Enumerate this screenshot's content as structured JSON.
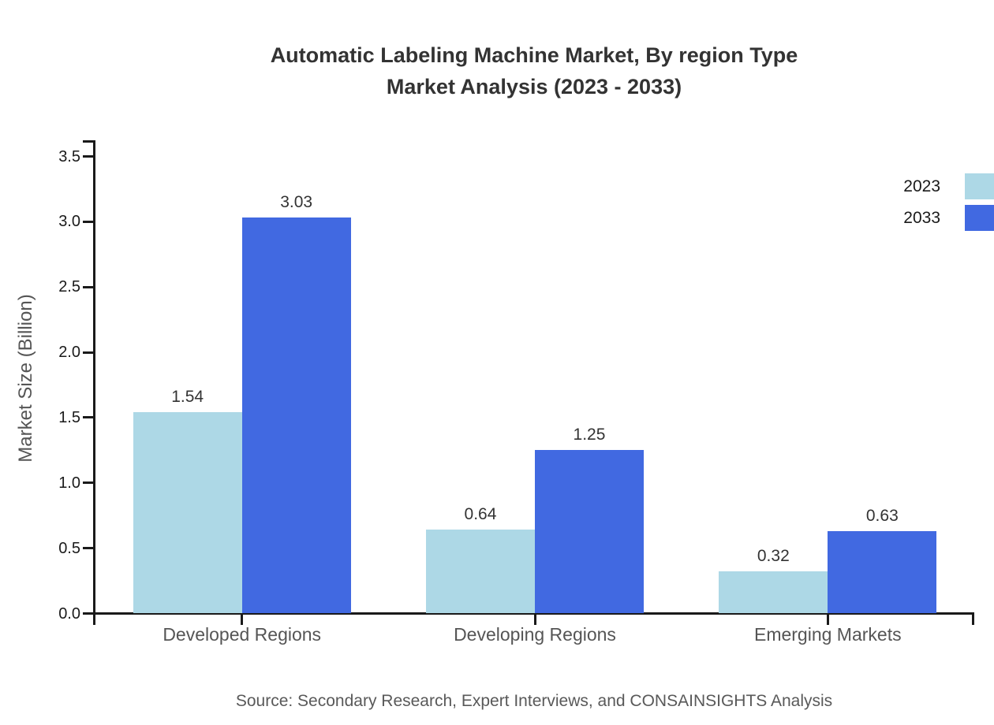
{
  "title": {
    "line1": "Automatic Labeling Machine Market, By region Type",
    "line2": "Market Analysis (2023 - 2033)"
  },
  "source": "Source: Secondary Research, Expert Interviews, and CONSAINSIGHTS Analysis",
  "legend": [
    {
      "label": "2023",
      "color": "#add8e6"
    },
    {
      "label": "2033",
      "color": "#4169e1"
    }
  ],
  "colors": {
    "axis": "#1a1a1a",
    "title_text": "#333333",
    "muted_text": "#555555",
    "series_2023": "#add8e6",
    "series_2033": "#4169e1"
  },
  "chart_data": {
    "type": "bar",
    "title": "Automatic Labeling Machine Market, By region Type Market Analysis (2023 - 2033)",
    "categories": [
      "Developed Regions",
      "Developing Regions",
      "Emerging Markets"
    ],
    "series": [
      {
        "name": "2023",
        "color": "#add8e6",
        "values": [
          1.54,
          0.64,
          0.32
        ]
      },
      {
        "name": "2033",
        "color": "#4169e1",
        "values": [
          3.03,
          1.25,
          0.63
        ]
      }
    ],
    "xlabel": "",
    "ylabel": "Market Size (Billion)",
    "ylim": [
      0.0,
      3.5
    ],
    "yticks": [
      0.0,
      0.5,
      1.0,
      1.5,
      2.0,
      2.5,
      3.0,
      3.5
    ],
    "grid": false,
    "legend_position": "upper right",
    "value_labels": true
  }
}
